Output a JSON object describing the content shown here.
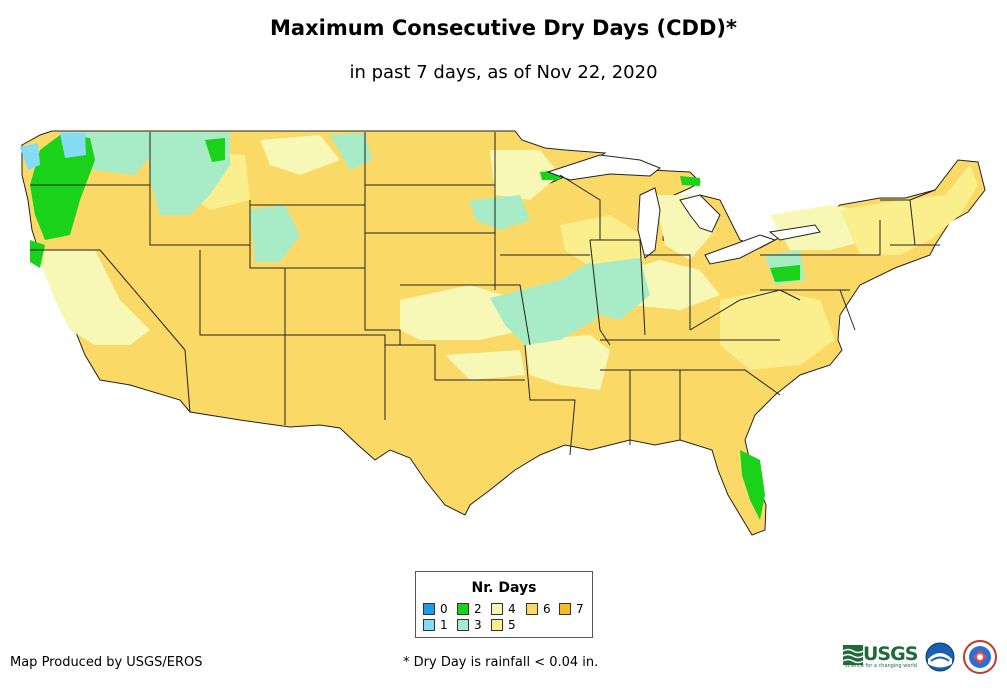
{
  "title": "Maximum Consecutive Dry Days (CDD)*",
  "subtitle": "in past 7 days, as of Nov 22, 2020",
  "legend": {
    "title": "Nr. Days",
    "items": [
      {
        "label": "0",
        "color": "#1e9be6"
      },
      {
        "label": "1",
        "color": "#87dcf5"
      },
      {
        "label": "2",
        "color": "#19d219"
      },
      {
        "label": "3",
        "color": "#a7ecc6"
      },
      {
        "label": "4",
        "color": "#f7f7b6"
      },
      {
        "label": "5",
        "color": "#fbee8c"
      },
      {
        "label": "6",
        "color": "#fbd966"
      },
      {
        "label": "7",
        "color": "#f7bd1a"
      }
    ]
  },
  "credit": "Map Produced by USGS/EROS",
  "footnote": "* Dry Day is rainfall < 0.04 in.",
  "logos": {
    "usgs": "USGS",
    "usgs_tagline": "science for a changing world",
    "noaa": "noaa-logo",
    "nws": "nws-logo"
  }
}
